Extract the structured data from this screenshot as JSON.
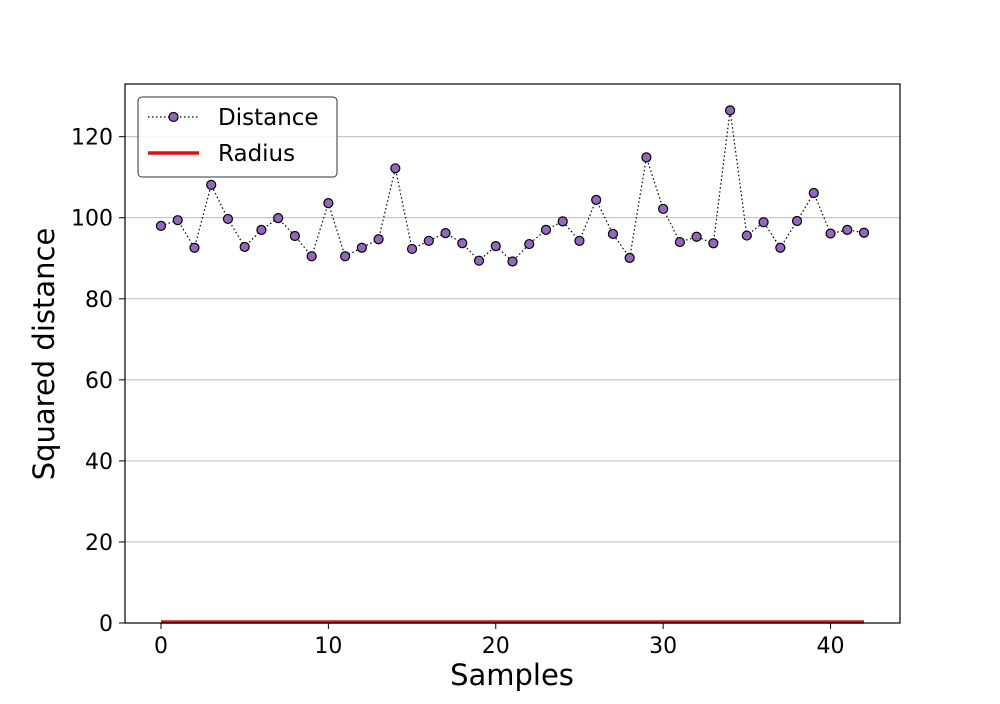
{
  "chart_data": {
    "type": "line",
    "title": "",
    "xlabel": "Samples",
    "ylabel": "Squared distance",
    "xlim": [
      -2.15,
      44.15
    ],
    "ylim": [
      0,
      133
    ],
    "x_ticks": [
      0,
      10,
      20,
      30,
      40
    ],
    "y_ticks": [
      0,
      20,
      40,
      60,
      80,
      100,
      120
    ],
    "grid": "y-major",
    "legend_position": "upper-left",
    "series": [
      {
        "name": "Distance",
        "style": "dotted-line-with-circle-markers",
        "line_color": "#000000",
        "marker_color": "#9467bd",
        "x": [
          0,
          1,
          2,
          3,
          4,
          5,
          6,
          7,
          8,
          9,
          10,
          11,
          12,
          13,
          14,
          15,
          16,
          17,
          18,
          19,
          20,
          21,
          22,
          23,
          24,
          25,
          26,
          27,
          28,
          29,
          30,
          31,
          32,
          33,
          34,
          35,
          36,
          37,
          38,
          39,
          40,
          41,
          42
        ],
        "values": [
          98.0,
          99.4,
          92.6,
          108.1,
          99.7,
          92.8,
          97.0,
          99.9,
          95.5,
          90.5,
          103.6,
          90.5,
          92.6,
          94.7,
          112.2,
          92.3,
          94.3,
          96.2,
          93.7,
          89.4,
          93.0,
          89.2,
          93.5,
          97.0,
          99.1,
          94.3,
          104.4,
          96.0,
          90.1,
          114.9,
          102.2,
          94.0,
          95.3,
          93.7,
          126.5,
          95.6,
          98.9,
          92.6,
          99.2,
          106.1,
          96.1,
          97.0,
          96.3
        ]
      },
      {
        "name": "Radius",
        "style": "solid-line",
        "line_color": "#e01010",
        "x": [
          0,
          42
        ],
        "values": [
          0,
          0
        ]
      }
    ]
  }
}
